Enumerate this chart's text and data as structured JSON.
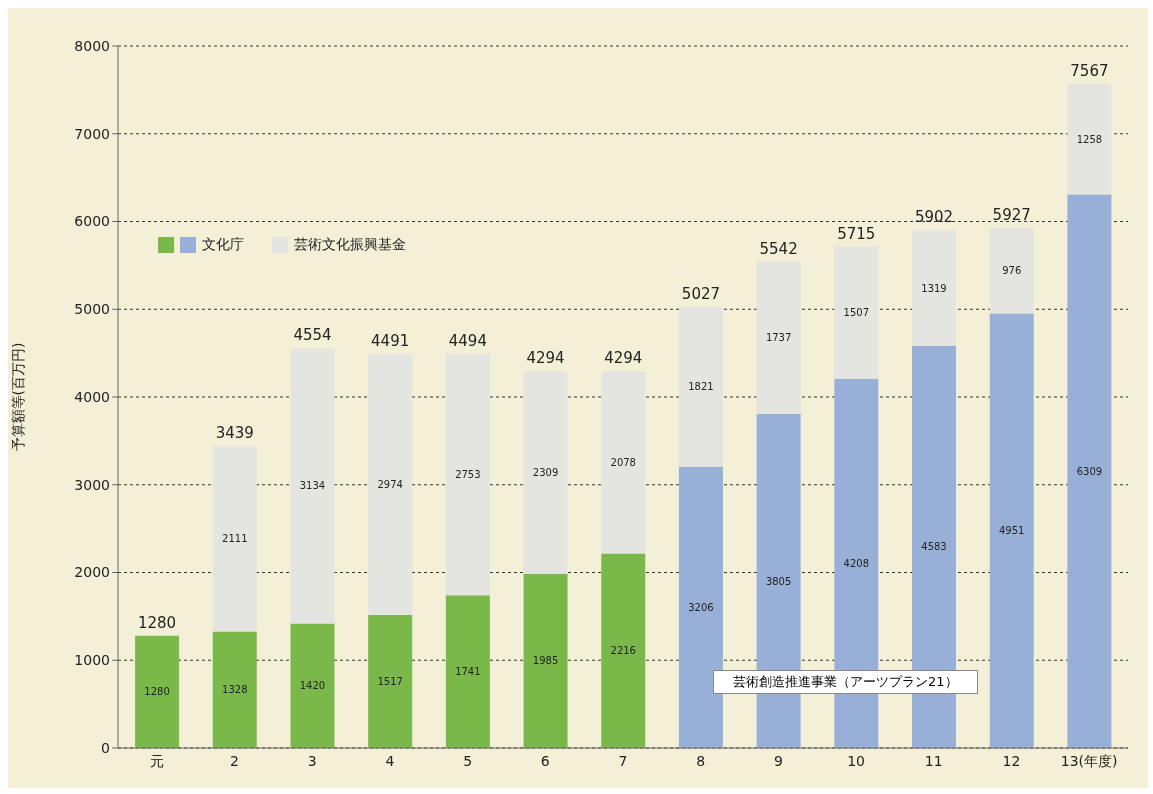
{
  "chart_data": {
    "type": "bar",
    "stacked": true,
    "ylabel": "予算額等(百万円)",
    "categories": [
      "元",
      "2",
      "3",
      "4",
      "5",
      "6",
      "7",
      "8",
      "9",
      "10",
      "11",
      "12",
      "13(年度)"
    ],
    "series": [
      {
        "name": "文化庁",
        "color": "#7bb84a",
        "colors": [
          "#7bb84a",
          "#7bb84a",
          "#7bb84a",
          "#7bb84a",
          "#7bb84a",
          "#7bb84a",
          "#7bb84a",
          "#98b0d8",
          "#98b0d8",
          "#98b0d8",
          "#98b0d8",
          "#98b0d8",
          "#98b0d8"
        ],
        "values": [
          1280,
          1328,
          1420,
          1517,
          1741,
          1985,
          2216,
          3206,
          3805,
          4208,
          4583,
          4951,
          6309
        ]
      },
      {
        "name": "芸術文化振興基金",
        "color": "#e4e4e0",
        "values": [
          null,
          2111,
          3134,
          2974,
          2753,
          2309,
          2078,
          1821,
          1737,
          1507,
          1319,
          976,
          1258
        ]
      }
    ],
    "totals": [
      "1280",
      "3439",
      "4554",
      "4491",
      "4494",
      "4294",
      "4294",
      "5027",
      "5542",
      "5715",
      "5902",
      "5927",
      "7567"
    ],
    "data_labels": true,
    "annotations": [
      "芸術創造推進事業（アーツプラン21）"
    ],
    "ylim": [
      0,
      8000
    ],
    "yticks": [
      0,
      1000,
      2000,
      3000,
      4000,
      5000,
      6000,
      7000,
      8000
    ],
    "grid": "y",
    "legend": "top left"
  }
}
